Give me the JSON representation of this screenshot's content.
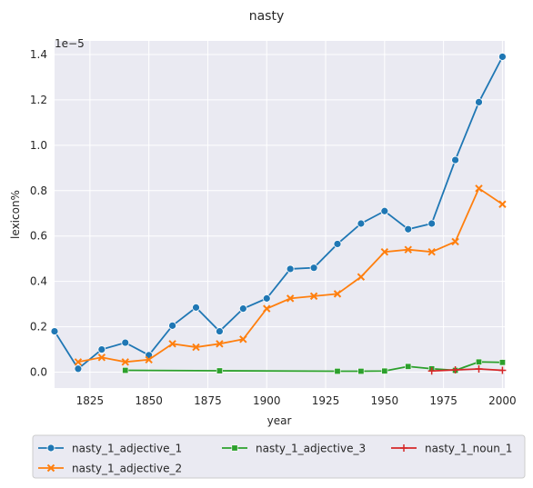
{
  "chart_data": {
    "type": "line",
    "title": "nasty",
    "xlabel": "year",
    "ylabel": "lexicon%",
    "y_scale_label": "1e−5",
    "xlim": [
      1810,
      2001
    ],
    "ylim": [
      -0.07,
      1.46
    ],
    "x_ticks": [
      1825,
      1850,
      1875,
      1900,
      1925,
      1950,
      1975,
      2000
    ],
    "y_ticks": [
      0.0,
      0.2,
      0.4,
      0.6,
      0.8,
      1.0,
      1.2,
      1.4
    ],
    "y_tick_labels": [
      "0.0",
      "0.2",
      "0.4",
      "0.6",
      "0.8",
      "1.0",
      "1.2",
      "1.4"
    ],
    "grid": true,
    "legend_position": "bottom-center",
    "series": [
      {
        "name": "nasty_1_adjective_1",
        "color": "#1f77b4",
        "marker": "circle",
        "x": [
          1810,
          1820,
          1830,
          1840,
          1850,
          1860,
          1870,
          1880,
          1890,
          1900,
          1910,
          1920,
          1930,
          1940,
          1950,
          1960,
          1970,
          1980,
          1990,
          2000
        ],
        "y": [
          0.18,
          0.015,
          0.1,
          0.13,
          0.075,
          0.205,
          0.285,
          0.18,
          0.28,
          0.325,
          0.455,
          0.46,
          0.565,
          0.655,
          0.71,
          0.63,
          0.655,
          0.935,
          1.19,
          1.39
        ]
      },
      {
        "name": "nasty_1_adjective_2",
        "color": "#ff7f0e",
        "marker": "x",
        "x": [
          1820,
          1830,
          1840,
          1850,
          1860,
          1870,
          1880,
          1890,
          1900,
          1910,
          1920,
          1930,
          1940,
          1950,
          1960,
          1970,
          1980,
          1990,
          2000
        ],
        "y": [
          0.045,
          0.065,
          0.045,
          0.055,
          0.125,
          0.11,
          0.125,
          0.145,
          0.28,
          0.325,
          0.335,
          0.345,
          0.42,
          0.53,
          0.54,
          0.53,
          0.575,
          0.81,
          0.74
        ]
      },
      {
        "name": "nasty_1_adjective_3",
        "color": "#2ca02c",
        "marker": "square",
        "x": [
          1840,
          1880,
          1930,
          1940,
          1950,
          1960,
          1970,
          1980,
          1990,
          2000
        ],
        "y": [
          0.008,
          0.006,
          0.004,
          0.004,
          0.005,
          0.025,
          0.015,
          0.008,
          0.045,
          0.043
        ]
      },
      {
        "name": "nasty_1_noun_1",
        "color": "#d62728",
        "marker": "plus",
        "x": [
          1970,
          1980,
          1990,
          2000
        ],
        "y": [
          0.005,
          0.01,
          0.014,
          0.008
        ]
      }
    ]
  }
}
